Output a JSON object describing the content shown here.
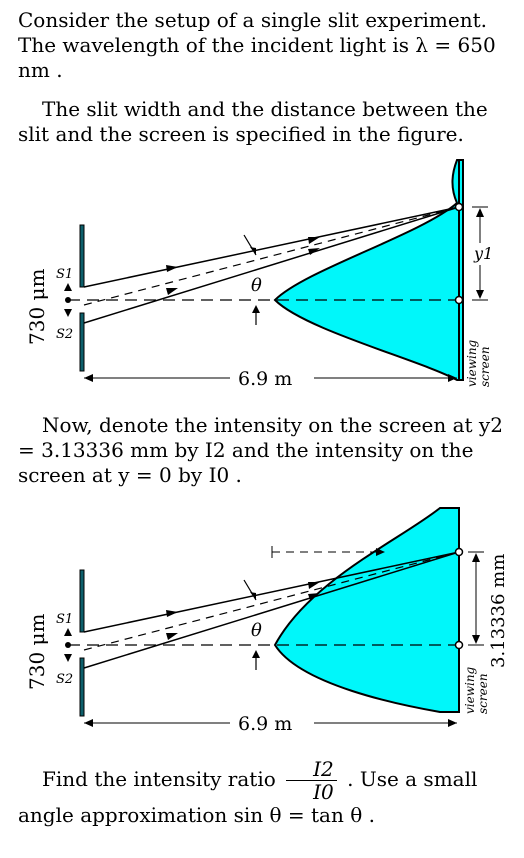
{
  "problem": {
    "p1_text": "Consider the setup of a single slit experiment. The wavelength of the incident light is λ = 650 nm .",
    "p2_text": "The slit width and the distance between the slit and the screen is specified in the figure.",
    "p3_text": "Now, denote the intensity on the screen at y2 = 3.13336 mm by I2 and the intensity on the screen at y = 0 by I0 .",
    "p4_pre": "Find the intensity ratio",
    "p4_num": "I2",
    "p4_den": "I0",
    "p4_post": ". Use a small angle approximation sin θ = tan θ ."
  },
  "figure1": {
    "slit_width": "730 μm",
    "s1": "S1",
    "s2": "S2",
    "theta": "θ",
    "distance": "6.9 m",
    "y_label": "y1",
    "screen_label_1": "viewing",
    "screen_label_2": "screen"
  },
  "figure2": {
    "slit_width": "730 μm",
    "s1": "S1",
    "s2": "S2",
    "theta": "θ",
    "distance": "6.9 m",
    "y_label": "3.13336 mm",
    "screen_label_1": "viewing",
    "screen_label_2": "screen"
  },
  "colors": {
    "intensity_fill": "#00f7fa",
    "barrier": "#0d5f6b"
  }
}
